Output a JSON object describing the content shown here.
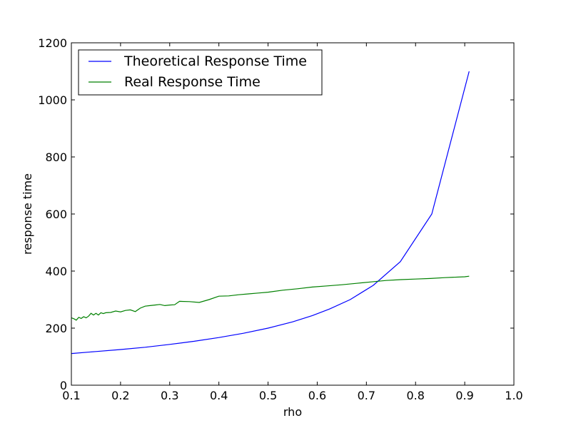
{
  "chart_data": {
    "type": "line",
    "title": "",
    "xlabel": "rho",
    "ylabel": "response time",
    "xlim": [
      0.1,
      1.0
    ],
    "ylim": [
      0,
      1200
    ],
    "xticks": [
      0.1,
      0.2,
      0.3,
      0.4,
      0.5,
      0.6,
      0.7,
      0.8,
      0.9,
      1.0
    ],
    "xtick_labels": [
      "0.1",
      "0.2",
      "0.3",
      "0.4",
      "0.5",
      "0.6",
      "0.7",
      "0.8",
      "0.9",
      "1.0"
    ],
    "yticks": [
      0,
      200,
      400,
      600,
      800,
      1000,
      1200
    ],
    "ytick_labels": [
      "0",
      "200",
      "400",
      "600",
      "800",
      "1000",
      "1200"
    ],
    "grid": false,
    "legend_position": "top-left",
    "series": [
      {
        "name": "Theoretical Response Time",
        "color": "#0000ff",
        "x": [
          0.1,
          0.15,
          0.2,
          0.25,
          0.3,
          0.35,
          0.4,
          0.45,
          0.5,
          0.55,
          0.59,
          0.625,
          0.667,
          0.714,
          0.769,
          0.833,
          0.909
        ],
        "y": [
          111,
          118,
          125,
          133,
          143,
          154,
          167,
          182,
          200,
          222,
          244,
          267,
          300,
          350,
          433,
          600,
          1100
        ]
      },
      {
        "name": "Real Response Time",
        "color": "#008000",
        "x": [
          0.1,
          0.105,
          0.11,
          0.115,
          0.12,
          0.125,
          0.13,
          0.135,
          0.14,
          0.145,
          0.15,
          0.155,
          0.16,
          0.165,
          0.17,
          0.18,
          0.19,
          0.2,
          0.21,
          0.22,
          0.23,
          0.24,
          0.25,
          0.26,
          0.27,
          0.28,
          0.29,
          0.3,
          0.31,
          0.32,
          0.34,
          0.36,
          0.38,
          0.4,
          0.42,
          0.44,
          0.46,
          0.48,
          0.5,
          0.53,
          0.56,
          0.59,
          0.62,
          0.65,
          0.68,
          0.71,
          0.74,
          0.77,
          0.8,
          0.83,
          0.86,
          0.9,
          0.909
        ],
        "y": [
          236,
          233,
          228,
          238,
          234,
          240,
          236,
          242,
          252,
          246,
          252,
          246,
          254,
          251,
          254,
          255,
          260,
          257,
          262,
          264,
          258,
          270,
          277,
          279,
          281,
          283,
          279,
          281,
          282,
          294,
          293,
          290,
          300,
          312,
          313,
          317,
          320,
          323,
          326,
          333,
          338,
          344,
          348,
          352,
          357,
          362,
          367,
          370,
          372,
          374,
          377,
          380,
          382
        ]
      }
    ]
  }
}
